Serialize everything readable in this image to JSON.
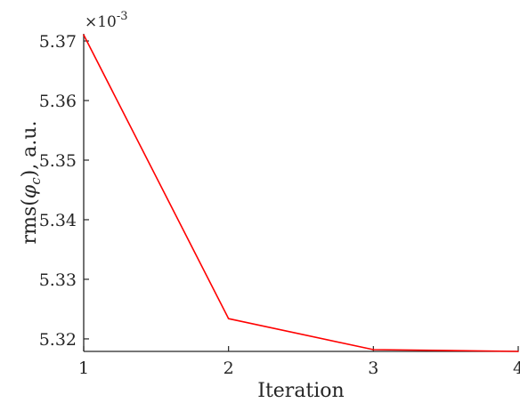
{
  "chart_data": {
    "type": "line",
    "x": [
      1,
      2,
      3,
      4
    ],
    "series": [
      {
        "values": [
          5.371,
          5.3234,
          5.3182,
          5.3179
        ],
        "color": "#ff0000"
      }
    ],
    "xlabel": "Iteration",
    "ylabel": "rms(φ_c), a.u.",
    "ylabel_parts": {
      "prefix": "rms(",
      "symbol": "φ",
      "subscript": "c",
      "suffix": "), a.u."
    },
    "y_exponent_label": "×10",
    "y_exponent_power": "-3",
    "xlim": [
      1,
      4
    ],
    "ylim": [
      5.3179,
      5.3712
    ],
    "xticks": [
      1,
      2,
      3,
      4
    ],
    "xtick_labels": [
      "1",
      "2",
      "3",
      "4"
    ],
    "yticks": [
      5.32,
      5.33,
      5.34,
      5.35,
      5.36,
      5.37
    ],
    "ytick_labels": [
      "5.32",
      "5.33",
      "5.34",
      "5.35",
      "5.36",
      "5.37"
    ],
    "grid": false,
    "axis_color": "#262626"
  }
}
